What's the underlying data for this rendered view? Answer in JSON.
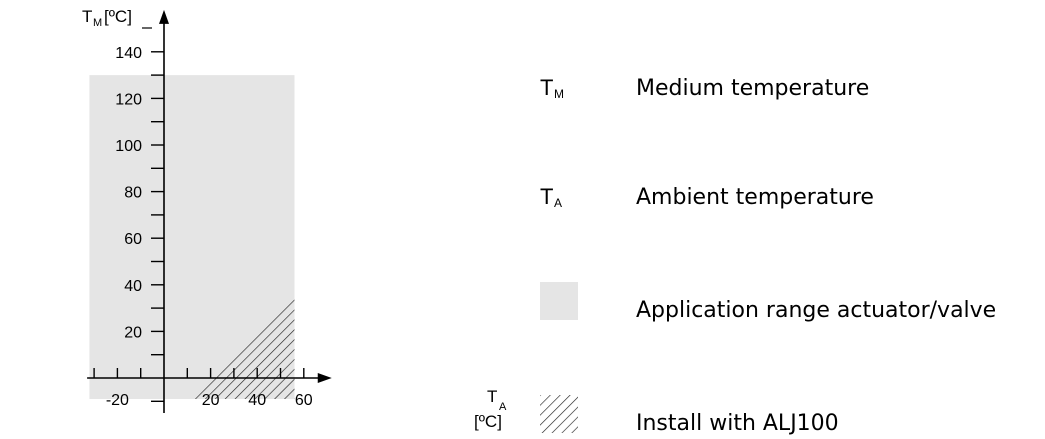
{
  "chart_data": {
    "type": "area",
    "x_axis": {
      "label_main": "T",
      "label_sub": "A",
      "unit": "[ºC]",
      "range": [
        -33,
        72
      ],
      "major_ticks": [
        -20,
        0,
        20,
        40,
        60
      ],
      "minor_ticks": [
        -30,
        -10,
        10,
        30,
        50
      ],
      "tick_labels": [
        "-20",
        "20",
        "40",
        "60"
      ]
    },
    "y_axis": {
      "label_main": "T",
      "label_sub": "M",
      "unit": "[ºC]",
      "range": [
        -15,
        158
      ],
      "major_ticks": [
        20,
        40,
        60,
        80,
        100,
        120,
        140
      ],
      "minor_ticks": [
        -10,
        10,
        30,
        50,
        70,
        90,
        110,
        130
      ],
      "tick_labels": [
        "20",
        "40",
        "60",
        "80",
        "100",
        "120",
        "140"
      ]
    },
    "regions": [
      {
        "name": "Application range actuator/valve",
        "fill": "#e5e5e5",
        "polygon": [
          [
            -32,
            -9
          ],
          [
            56,
            -9
          ],
          [
            56,
            130
          ],
          [
            -32,
            130
          ]
        ]
      },
      {
        "name": "Install with ALJ100",
        "fill": "hatch",
        "polygon": [
          [
            10,
            -9
          ],
          [
            56,
            -9
          ],
          [
            56,
            36
          ]
        ]
      }
    ],
    "grid": false
  },
  "legend": {
    "tm_symbol": "T",
    "tm_sub": "M",
    "tm_text": "Medium temperature",
    "ta_symbol": "T",
    "ta_sub": "A",
    "ta_text": "Ambient temperature",
    "app_text": "Application range actuator/valve",
    "install_text": "Install with ALJ100"
  },
  "colors": {
    "application_fill": "#e5e5e5",
    "hatch_stroke": "#222222",
    "axis": "#000000"
  }
}
